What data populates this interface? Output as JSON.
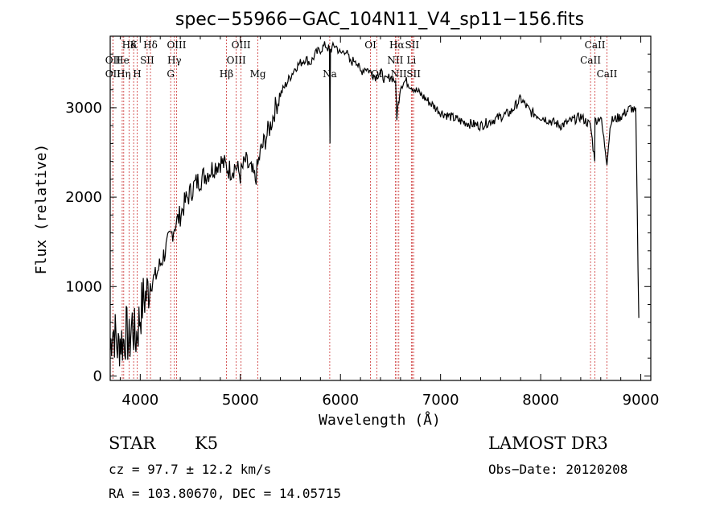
{
  "chart_data": {
    "type": "line",
    "title": "spec−55966−GAC_104N11_V4_sp11−156.fits",
    "xlabel": "Wavelength (Å)",
    "ylabel": "Flux (relative)",
    "xlim": [
      3700,
      9100
    ],
    "ylim": [
      -50,
      3800
    ],
    "xticks": [
      4000,
      5000,
      6000,
      7000,
      8000,
      9000
    ],
    "yticks": [
      0,
      1000,
      2000,
      3000
    ],
    "grid": false,
    "series": [
      {
        "x": [
          3700,
          3720,
          3750,
          3780,
          3800,
          3830,
          3860,
          3890,
          3920,
          3950,
          3980,
          4000,
          4030,
          4060,
          4100,
          4150,
          4200,
          4250,
          4300,
          4350,
          4400,
          4450,
          4500,
          4550,
          4600,
          4650,
          4700,
          4750,
          4800,
          4850,
          4900,
          4950,
          5000,
          5050,
          5100,
          5150,
          5200,
          5250,
          5300,
          5350,
          5400,
          5450,
          5500,
          5550,
          5600,
          5650,
          5700,
          5750,
          5800,
          5850,
          5890,
          5895,
          5900,
          5950,
          6000,
          6050,
          6100,
          6150,
          6200,
          6250,
          6300,
          6350,
          6400,
          6450,
          6500,
          6550,
          6563,
          6600,
          6650,
          6700,
          6750,
          6800,
          6850,
          6900,
          6950,
          7000,
          7100,
          7200,
          7300,
          7400,
          7500,
          7600,
          7700,
          7800,
          7900,
          8000,
          8100,
          8200,
          8300,
          8400,
          8498,
          8540,
          8542,
          8600,
          8662,
          8700,
          8800,
          8900,
          8950,
          8980
        ],
        "y": [
          300,
          550,
          450,
          300,
          420,
          380,
          500,
          350,
          600,
          400,
          550,
          700,
          850,
          900,
          1050,
          1100,
          1250,
          1400,
          1550,
          1700,
          1800,
          1950,
          2050,
          2150,
          2200,
          2250,
          2300,
          2350,
          2400,
          2350,
          2300,
          2350,
          2250,
          2400,
          2300,
          2200,
          2500,
          2650,
          2800,
          3000,
          3150,
          3250,
          3350,
          3450,
          3500,
          3550,
          3500,
          3600,
          3650,
          3700,
          3650,
          2600,
          3650,
          3700,
          3600,
          3650,
          3500,
          3550,
          3400,
          3450,
          3400,
          3350,
          3400,
          3300,
          3350,
          3300,
          2900,
          3250,
          3300,
          3250,
          3200,
          3150,
          3100,
          3050,
          3000,
          2950,
          2900,
          2850,
          2820,
          2800,
          2850,
          2900,
          2950,
          3100,
          2950,
          2900,
          2850,
          2800,
          2850,
          2900,
          2800,
          2400,
          2850,
          2900,
          2400,
          2850,
          2900,
          3000,
          2950,
          650
        ]
      }
    ],
    "lines": [
      {
        "label": "Hδ",
        "row": 1,
        "wl": 3889
      },
      {
        "label": "OII",
        "row": 2,
        "wl": 3727
      },
      {
        "label": "OII",
        "row": 3,
        "wl": 3727
      },
      {
        "label": "K",
        "row": 1,
        "wl": 3934
      },
      {
        "label": "He",
        "row": 2,
        "wl": 3820
      },
      {
        "label": "Hη",
        "row": 3,
        "wl": 3835
      },
      {
        "label": "Hδ",
        "row": 1,
        "wl": 4102
      },
      {
        "label": "SII",
        "row": 2,
        "wl": 4069
      },
      {
        "label": "H",
        "row": 3,
        "wl": 3969
      },
      {
        "label": "OIII",
        "row": 1,
        "wl": 4363
      },
      {
        "label": "Hγ",
        "row": 2,
        "wl": 4341
      },
      {
        "label": "G",
        "row": 3,
        "wl": 4304
      },
      {
        "label": "OIII",
        "row": 1,
        "wl": 5007
      },
      {
        "label": "OIII",
        "row": 2,
        "wl": 4959
      },
      {
        "label": "Hβ",
        "row": 3,
        "wl": 4861
      },
      {
        "label": "Mg",
        "row": 3,
        "wl": 5175
      },
      {
        "label": "Na",
        "row": 3,
        "wl": 5893
      },
      {
        "label": "OI",
        "row": 1,
        "wl": 6300
      },
      {
        "label": "OI",
        "row": 3,
        "wl": 6364
      },
      {
        "label": "Hα",
        "row": 1,
        "wl": 6563
      },
      {
        "label": "SII",
        "row": 1,
        "wl": 6716
      },
      {
        "label": "NII",
        "row": 2,
        "wl": 6548
      },
      {
        "label": "Li",
        "row": 2,
        "wl": 6708
      },
      {
        "label": "NII",
        "row": 3,
        "wl": 6583
      },
      {
        "label": "SII",
        "row": 3,
        "wl": 6731
      },
      {
        "label": "CaII",
        "row": 1,
        "wl": 8542
      },
      {
        "label": "CaII",
        "row": 2,
        "wl": 8498
      },
      {
        "label": "CaII",
        "row": 3,
        "wl": 8662
      }
    ]
  },
  "info": {
    "class": "STAR",
    "subclass": "K5",
    "survey": "LAMOST DR3",
    "cz": "cz = 97.7 ± 12.2 km/s",
    "obs_date": "Obs−Date: 20120208",
    "coords": "RA = 103.80670, DEC =  14.05715"
  }
}
